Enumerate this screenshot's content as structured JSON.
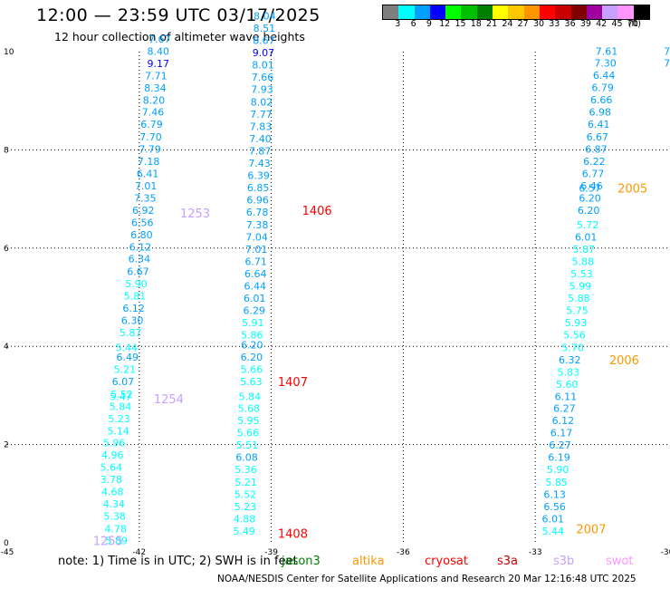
{
  "header": {
    "title": "12:00 — 23:59 UTC 03/17/2025",
    "subtitle": "12 hour collection of altimeter wave heights"
  },
  "legend": {
    "unit": "(ft)",
    "bins": [
      {
        "label": "3",
        "color": "#7f7f7f"
      },
      {
        "label": "6",
        "color": "#00ffff"
      },
      {
        "label": "9",
        "color": "#00a0ff"
      },
      {
        "label": "12",
        "color": "#0000ff"
      },
      {
        "label": "15",
        "color": "#00ff00"
      },
      {
        "label": "18",
        "color": "#00c000"
      },
      {
        "label": "21",
        "color": "#008000"
      },
      {
        "label": "24",
        "color": "#ffff00"
      },
      {
        "label": "27",
        "color": "#ffc800"
      },
      {
        "label": "30",
        "color": "#ff9600"
      },
      {
        "label": "33",
        "color": "#ff0000"
      },
      {
        "label": "36",
        "color": "#c80000"
      },
      {
        "label": "39",
        "color": "#800000"
      },
      {
        "label": "42",
        "color": "#a000a0"
      },
      {
        "label": "45",
        "color": "#c8a0ff"
      },
      {
        "label": "70",
        "color": "#ff96ff"
      },
      {
        "label": "",
        "color": "#000000"
      }
    ]
  },
  "axes": {
    "x_ticks": [
      "-45",
      "-42",
      "-39",
      "-36",
      "-33",
      "-30"
    ],
    "y_ticks": [
      "0",
      "2",
      "4",
      "6",
      "8",
      "10"
    ],
    "xlim": [
      -45,
      -30
    ],
    "ylim": [
      0,
      10
    ]
  },
  "tracks": [
    {
      "points": [
        {
          "lon": -42.77,
          "lat": 0.05,
          "v": "5.89",
          "c": "#00ffff"
        },
        {
          "lon": -42.79,
          "lat": 0.29,
          "v": "4.78",
          "c": "#00ffff"
        },
        {
          "lon": -42.81,
          "lat": 0.54,
          "v": "5.38",
          "c": "#00ffff"
        },
        {
          "lon": -42.83,
          "lat": 0.79,
          "v": "4.34",
          "c": "#00ffff"
        },
        {
          "lon": -42.86,
          "lat": 1.04,
          "v": "4.68",
          "c": "#00ffff"
        },
        {
          "lon": -42.89,
          "lat": 1.29,
          "v": "3.78",
          "c": "#00ffff"
        },
        {
          "lon": -42.89,
          "lat": 1.54,
          "v": "5.64",
          "c": "#00ffff"
        },
        {
          "lon": -42.86,
          "lat": 1.79,
          "v": "4.96",
          "c": "#00ffff"
        },
        {
          "lon": -42.82,
          "lat": 2.04,
          "v": "5.96",
          "c": "#00ffff"
        },
        {
          "lon": -42.73,
          "lat": 2.28,
          "v": "5.14",
          "c": "#00ffff"
        },
        {
          "lon": -42.71,
          "lat": 2.53,
          "v": "5.23",
          "c": "#00ffff"
        },
        {
          "lon": -42.68,
          "lat": 2.78,
          "v": "5.84",
          "c": "#00ffff"
        },
        {
          "lon": -42.67,
          "lat": 2.98,
          "v": "5.47",
          "c": "#00ffff"
        },
        {
          "lon": -42.65,
          "lat": 3.03,
          "v": "5.52",
          "c": "#00ffff"
        },
        {
          "lon": -42.62,
          "lat": 3.28,
          "v": "6.07",
          "c": "#00a0ff"
        },
        {
          "lon": -42.58,
          "lat": 3.53,
          "v": "5.21",
          "c": "#00ffff"
        },
        {
          "lon": -42.52,
          "lat": 3.78,
          "v": "6.49",
          "c": "#00a0ff"
        },
        {
          "lon": -42.54,
          "lat": 3.98,
          "v": "5.44",
          "c": "#00ffff"
        },
        {
          "lon": -42.45,
          "lat": 4.28,
          "v": "5.87",
          "c": "#00ffff"
        },
        {
          "lon": -42.41,
          "lat": 4.53,
          "v": "6.30",
          "c": "#00a0ff"
        },
        {
          "lon": -42.38,
          "lat": 4.78,
          "v": "6.12",
          "c": "#00a0ff"
        },
        {
          "lon": -42.35,
          "lat": 5.03,
          "v": "5.81",
          "c": "#00ffff"
        },
        {
          "lon": -42.32,
          "lat": 5.28,
          "v": "5.90",
          "c": "#00ffff"
        },
        {
          "lon": -42.28,
          "lat": 5.53,
          "v": "6.67",
          "c": "#00a0ff"
        },
        {
          "lon": -42.25,
          "lat": 5.78,
          "v": "6.34",
          "c": "#00a0ff"
        },
        {
          "lon": -42.23,
          "lat": 6.02,
          "v": "6.12",
          "c": "#00a0ff"
        },
        {
          "lon": -42.2,
          "lat": 6.27,
          "v": "6.80",
          "c": "#00a0ff"
        },
        {
          "lon": -42.18,
          "lat": 6.52,
          "v": "6.56",
          "c": "#00a0ff"
        },
        {
          "lon": -42.16,
          "lat": 6.77,
          "v": "6.92",
          "c": "#00a0ff"
        },
        {
          "lon": -42.12,
          "lat": 7.02,
          "v": "7.35",
          "c": "#00a0ff"
        },
        {
          "lon": -42.1,
          "lat": 7.27,
          "v": "7.01",
          "c": "#00a0ff"
        },
        {
          "lon": -42.06,
          "lat": 7.52,
          "v": "6.41",
          "c": "#00a0ff"
        },
        {
          "lon": -42.04,
          "lat": 7.77,
          "v": "7.18",
          "c": "#00a0ff"
        },
        {
          "lon": -42.01,
          "lat": 8.02,
          "v": "7.79",
          "c": "#00a0ff"
        },
        {
          "lon": -41.99,
          "lat": 8.27,
          "v": "7.70",
          "c": "#00a0ff"
        },
        {
          "lon": -41.97,
          "lat": 8.52,
          "v": "6.79",
          "c": "#00a0ff"
        },
        {
          "lon": -41.94,
          "lat": 8.77,
          "v": "7.46",
          "c": "#00a0ff"
        },
        {
          "lon": -41.92,
          "lat": 9.01,
          "v": "8.20",
          "c": "#00a0ff"
        },
        {
          "lon": -41.89,
          "lat": 9.26,
          "v": "8.34",
          "c": "#00a0ff"
        },
        {
          "lon": -41.87,
          "lat": 9.51,
          "v": "7.71",
          "c": "#00a0ff"
        },
        {
          "lon": -41.82,
          "lat": 9.76,
          "v": "9.17",
          "c": "#0000ff"
        },
        {
          "lon": -41.82,
          "lat": 10.01,
          "v": "8.40",
          "c": "#00a0ff"
        },
        {
          "lon": -41.79,
          "lat": 10.26,
          "v": "7.67",
          "c": "#00a0ff"
        }
      ],
      "ids": [
        {
          "lon": -43.05,
          "lat": 0.05,
          "label": "1255",
          "c": "#c8a0ff"
        },
        {
          "lon": -41.67,
          "lat": 2.93,
          "label": "1254",
          "c": "#c8a0ff"
        },
        {
          "lon": -41.07,
          "lat": 6.72,
          "label": "1253",
          "c": "#c8a0ff"
        }
      ]
    },
    {
      "points": [
        {
          "lon": -39.87,
          "lat": 0.24,
          "v": "5.49",
          "c": "#00ffff"
        },
        {
          "lon": -39.86,
          "lat": 0.49,
          "v": "4.88",
          "c": "#00ffff"
        },
        {
          "lon": -39.84,
          "lat": 0.74,
          "v": "5.23",
          "c": "#00ffff"
        },
        {
          "lon": -39.84,
          "lat": 0.99,
          "v": "5.52",
          "c": "#00ffff"
        },
        {
          "lon": -39.83,
          "lat": 1.24,
          "v": "5.21",
          "c": "#00ffff"
        },
        {
          "lon": -39.83,
          "lat": 1.49,
          "v": "5.36",
          "c": "#00ffff"
        },
        {
          "lon": -39.81,
          "lat": 1.74,
          "v": "6.08",
          "c": "#00a0ff"
        },
        {
          "lon": -39.8,
          "lat": 1.99,
          "v": "5.51",
          "c": "#00ffff"
        },
        {
          "lon": -39.78,
          "lat": 2.24,
          "v": "5.66",
          "c": "#00ffff"
        },
        {
          "lon": -39.77,
          "lat": 2.49,
          "v": "5.95",
          "c": "#00ffff"
        },
        {
          "lon": -39.76,
          "lat": 2.74,
          "v": "5.68",
          "c": "#00ffff"
        },
        {
          "lon": -39.74,
          "lat": 2.98,
          "v": "5.84",
          "c": "#00ffff"
        },
        {
          "lon": -39.71,
          "lat": 3.28,
          "v": "5.63",
          "c": "#00ffff"
        },
        {
          "lon": -39.7,
          "lat": 3.53,
          "v": "5.66",
          "c": "#00ffff"
        },
        {
          "lon": -39.7,
          "lat": 3.78,
          "v": "6.20",
          "c": "#00a0ff"
        },
        {
          "lon": -39.69,
          "lat": 4.03,
          "v": "6.20",
          "c": "#00a0ff"
        },
        {
          "lon": -39.69,
          "lat": 4.23,
          "v": "5.86",
          "c": "#00ffff"
        },
        {
          "lon": -39.67,
          "lat": 4.48,
          "v": "5.91",
          "c": "#00ffff"
        },
        {
          "lon": -39.64,
          "lat": 4.73,
          "v": "6.29",
          "c": "#00a0ff"
        },
        {
          "lon": -39.63,
          "lat": 4.98,
          "v": "6.01",
          "c": "#00a0ff"
        },
        {
          "lon": -39.62,
          "lat": 5.23,
          "v": "6.44",
          "c": "#00a0ff"
        },
        {
          "lon": -39.61,
          "lat": 5.48,
          "v": "6.64",
          "c": "#00a0ff"
        },
        {
          "lon": -39.6,
          "lat": 5.73,
          "v": "6.71",
          "c": "#00a0ff"
        },
        {
          "lon": -39.59,
          "lat": 5.98,
          "v": "7.01",
          "c": "#00a0ff"
        },
        {
          "lon": -39.58,
          "lat": 6.23,
          "v": "7.04",
          "c": "#00a0ff"
        },
        {
          "lon": -39.57,
          "lat": 6.48,
          "v": "7.38",
          "c": "#00a0ff"
        },
        {
          "lon": -39.57,
          "lat": 6.73,
          "v": "6.78",
          "c": "#00a0ff"
        },
        {
          "lon": -39.56,
          "lat": 6.98,
          "v": "6.96",
          "c": "#00a0ff"
        },
        {
          "lon": -39.55,
          "lat": 7.23,
          "v": "6.85",
          "c": "#00a0ff"
        },
        {
          "lon": -39.54,
          "lat": 7.48,
          "v": "6.39",
          "c": "#00a0ff"
        },
        {
          "lon": -39.52,
          "lat": 7.73,
          "v": "7.43",
          "c": "#00a0ff"
        },
        {
          "lon": -39.51,
          "lat": 7.98,
          "v": "7.87",
          "c": "#00a0ff"
        },
        {
          "lon": -39.5,
          "lat": 8.23,
          "v": "7.40",
          "c": "#00a0ff"
        },
        {
          "lon": -39.49,
          "lat": 8.48,
          "v": "7.83",
          "c": "#00a0ff"
        },
        {
          "lon": -39.48,
          "lat": 8.73,
          "v": "7.77",
          "c": "#00a0ff"
        },
        {
          "lon": -39.47,
          "lat": 8.98,
          "v": "8.02",
          "c": "#00a0ff"
        },
        {
          "lon": -39.46,
          "lat": 9.23,
          "v": "7.93",
          "c": "#00a0ff"
        },
        {
          "lon": -39.45,
          "lat": 9.48,
          "v": "7.66",
          "c": "#00a0ff"
        },
        {
          "lon": -39.44,
          "lat": 9.73,
          "v": "8.01",
          "c": "#00a0ff"
        },
        {
          "lon": -39.43,
          "lat": 9.98,
          "v": "9.07",
          "c": "#0000ff"
        },
        {
          "lon": -39.42,
          "lat": 10.23,
          "v": "8.67",
          "c": "#00a0ff"
        },
        {
          "lon": -39.41,
          "lat": 10.48,
          "v": "8.51",
          "c": "#00a0ff"
        },
        {
          "lon": -39.4,
          "lat": 10.73,
          "v": "8.04",
          "c": "#00a0ff"
        }
      ],
      "ids": [
        {
          "lon": -38.85,
          "lat": 0.19,
          "label": "1408",
          "c": "#ff0000"
        },
        {
          "lon": -38.85,
          "lat": 3.28,
          "label": "1407",
          "c": "#ff0000"
        },
        {
          "lon": -38.3,
          "lat": 6.77,
          "label": "1406",
          "c": "#ff0000"
        }
      ]
    },
    {
      "points": [
        {
          "lon": -32.85,
          "lat": 0.24,
          "v": "5.44",
          "c": "#00ffff"
        },
        {
          "lon": -32.85,
          "lat": 0.49,
          "v": "6.01",
          "c": "#00a0ff"
        },
        {
          "lon": -32.81,
          "lat": 0.74,
          "v": "6.56",
          "c": "#00a0ff"
        },
        {
          "lon": -32.81,
          "lat": 0.99,
          "v": "6.13",
          "c": "#00a0ff"
        },
        {
          "lon": -32.77,
          "lat": 1.24,
          "v": "5.85",
          "c": "#00ffff"
        },
        {
          "lon": -32.74,
          "lat": 1.49,
          "v": "5.90",
          "c": "#00ffff"
        },
        {
          "lon": -32.71,
          "lat": 1.74,
          "v": "6.19",
          "c": "#00a0ff"
        },
        {
          "lon": -32.69,
          "lat": 1.99,
          "v": "6.27",
          "c": "#00a0ff"
        },
        {
          "lon": -32.66,
          "lat": 2.24,
          "v": "6.17",
          "c": "#00a0ff"
        },
        {
          "lon": -32.62,
          "lat": 2.49,
          "v": "6.12",
          "c": "#00a0ff"
        },
        {
          "lon": -32.59,
          "lat": 2.74,
          "v": "6.27",
          "c": "#00a0ff"
        },
        {
          "lon": -32.56,
          "lat": 2.98,
          "v": "6.11",
          "c": "#00a0ff"
        },
        {
          "lon": -32.53,
          "lat": 3.23,
          "v": "5.60",
          "c": "#00ffff"
        },
        {
          "lon": -32.5,
          "lat": 3.48,
          "v": "5.83",
          "c": "#00ffff"
        },
        {
          "lon": -32.47,
          "lat": 3.73,
          "v": "6.32",
          "c": "#00a0ff"
        },
        {
          "lon": -32.4,
          "lat": 3.98,
          "v": "5.70",
          "c": "#00ffff"
        },
        {
          "lon": -32.36,
          "lat": 4.23,
          "v": "5.56",
          "c": "#00ffff"
        },
        {
          "lon": -32.33,
          "lat": 4.48,
          "v": "5.93",
          "c": "#00ffff"
        },
        {
          "lon": -32.3,
          "lat": 4.73,
          "v": "5.75",
          "c": "#00ffff"
        },
        {
          "lon": -32.26,
          "lat": 4.98,
          "v": "5.88",
          "c": "#00ffff"
        },
        {
          "lon": -32.23,
          "lat": 5.23,
          "v": "5.99",
          "c": "#00ffff"
        },
        {
          "lon": -32.2,
          "lat": 5.48,
          "v": "5.53",
          "c": "#00ffff"
        },
        {
          "lon": -32.17,
          "lat": 5.73,
          "v": "5.88",
          "c": "#00ffff"
        },
        {
          "lon": -32.15,
          "lat": 5.98,
          "v": "5.87",
          "c": "#00ffff"
        },
        {
          "lon": -32.1,
          "lat": 6.23,
          "v": "6.01",
          "c": "#00a0ff"
        },
        {
          "lon": -32.06,
          "lat": 6.48,
          "v": "5.72",
          "c": "#00ffff"
        },
        {
          "lon": -32.04,
          "lat": 6.77,
          "v": "6.20",
          "c": "#00a0ff"
        },
        {
          "lon": -32.01,
          "lat": 7.02,
          "v": "6.20",
          "c": "#00a0ff"
        },
        {
          "lon": -32.01,
          "lat": 7.22,
          "v": "6.57",
          "c": "#00a0ff"
        },
        {
          "lon": -31.97,
          "lat": 7.27,
          "v": "6.46",
          "c": "#00a0ff"
        },
        {
          "lon": -31.94,
          "lat": 7.52,
          "v": "6.77",
          "c": "#00a0ff"
        },
        {
          "lon": -31.91,
          "lat": 7.77,
          "v": "6.22",
          "c": "#00a0ff"
        },
        {
          "lon": -31.87,
          "lat": 8.02,
          "v": "6.87",
          "c": "#00a0ff"
        },
        {
          "lon": -31.84,
          "lat": 8.27,
          "v": "6.67",
          "c": "#00a0ff"
        },
        {
          "lon": -31.81,
          "lat": 8.52,
          "v": "6.41",
          "c": "#00a0ff"
        },
        {
          "lon": -31.78,
          "lat": 8.77,
          "v": "6.98",
          "c": "#00a0ff"
        },
        {
          "lon": -31.75,
          "lat": 9.02,
          "v": "6.66",
          "c": "#00a0ff"
        },
        {
          "lon": -31.72,
          "lat": 9.27,
          "v": "6.79",
          "c": "#00a0ff"
        },
        {
          "lon": -31.69,
          "lat": 9.52,
          "v": "6.44",
          "c": "#00a0ff"
        },
        {
          "lon": -31.66,
          "lat": 9.77,
          "v": "7.30",
          "c": "#00a0ff"
        },
        {
          "lon": -31.63,
          "lat": 10.01,
          "v": "7.61",
          "c": "#00a0ff"
        },
        {
          "lon": -30.08,
          "lat": 10.01,
          "v": "7",
          "c": "#00a0ff"
        },
        {
          "lon": -30.08,
          "lat": 9.77,
          "v": "7",
          "c": "#00a0ff"
        }
      ],
      "ids": [
        {
          "lon": -32.07,
          "lat": 0.29,
          "label": "2007",
          "c": "#ff9600"
        },
        {
          "lon": -31.32,
          "lat": 3.73,
          "label": "2006",
          "c": "#ff9600"
        },
        {
          "lon": -31.13,
          "lat": 7.22,
          "label": "2005",
          "c": "#ff9600"
        }
      ]
    }
  ],
  "note": {
    "text": "note:  1) Time is in UTC;  2) SWH is in feet",
    "satellites": [
      {
        "name": "jason3",
        "color": "#008000"
      },
      {
        "name": "altika",
        "color": "#ff9600"
      },
      {
        "name": "cryosat",
        "color": "#ff0000"
      },
      {
        "name": "s3a",
        "color": "#c80000"
      },
      {
        "name": "s3b",
        "color": "#c8a0ff"
      },
      {
        "name": "swot",
        "color": "#ff96ff"
      }
    ]
  },
  "credit": {
    "text": "NOAA/NESDIS Center for Satellite Applications and Research    20 Mar 12:16:48 UTC 2025"
  }
}
